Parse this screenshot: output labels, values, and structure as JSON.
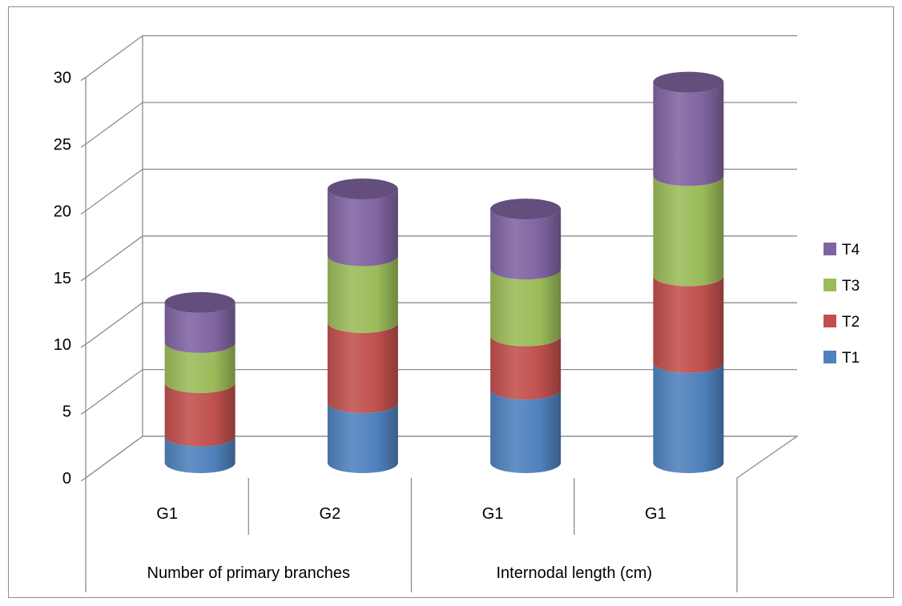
{
  "chart_data": {
    "type": "bar",
    "stacked": true,
    "style": "3d-cylinder",
    "title": "",
    "xlabel": "",
    "ylabel": "",
    "ylim": [
      0,
      30
    ],
    "yticks": [
      "0",
      "5",
      "10",
      "15",
      "20",
      "25",
      "30"
    ],
    "grid": true,
    "legend_position": "right",
    "categories": [
      "G1",
      "G2",
      "G1",
      "G1"
    ],
    "groups": [
      {
        "label": "Number of primary branches",
        "span": 2
      },
      {
        "label": "Internodal length (cm)",
        "span": 2
      }
    ],
    "series": [
      {
        "name": "T1",
        "color": "#4f81bd",
        "values": [
          2,
          4.5,
          5.5,
          7.5
        ]
      },
      {
        "name": "T2",
        "color": "#c0504d",
        "values": [
          4,
          6,
          4,
          6.5
        ]
      },
      {
        "name": "T3",
        "color": "#9bbb59",
        "values": [
          3,
          5,
          5,
          7.5
        ]
      },
      {
        "name": "T4",
        "color": "#8064a2",
        "values": [
          3,
          5,
          4.5,
          7
        ]
      }
    ]
  }
}
